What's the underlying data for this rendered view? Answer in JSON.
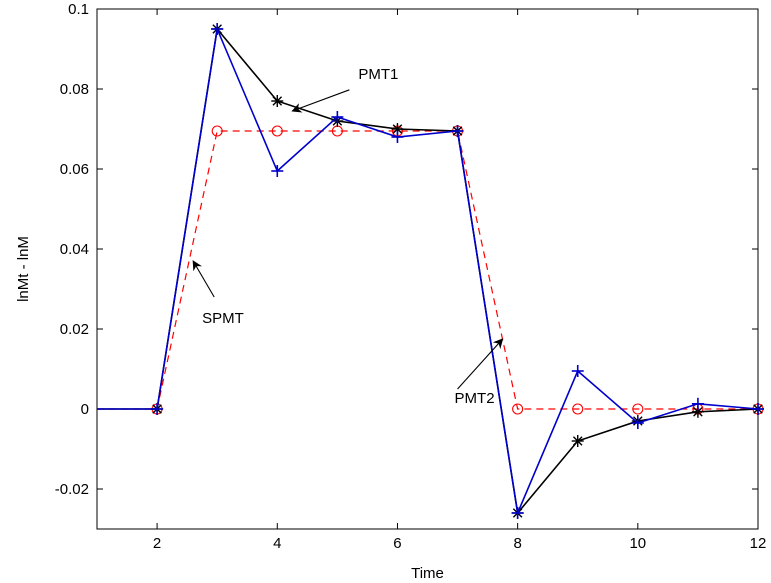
{
  "chart_data": {
    "type": "line",
    "xlabel": "Time",
    "ylabel": "lnMt - lnM",
    "xlim": [
      1,
      12
    ],
    "ylim": [
      -0.03,
      0.1
    ],
    "xticks": [
      2,
      4,
      6,
      8,
      10,
      12
    ],
    "xtick_labels": [
      "2",
      "4",
      "6",
      "8",
      "10",
      "12"
    ],
    "yticks": [
      -0.02,
      0,
      0.02,
      0.04,
      0.06,
      0.08,
      0.1
    ],
    "ytick_labels": [
      "-0.02",
      "0",
      "0.02",
      "0.04",
      "0.06",
      "0.08",
      "0.1"
    ],
    "grid": false,
    "x": [
      1,
      2,
      3,
      4,
      5,
      6,
      7,
      8,
      9,
      10,
      11,
      12
    ],
    "series": [
      {
        "color": "#000000",
        "line_style": "solid",
        "marker": "asterisk",
        "values": [
          0,
          0,
          0.095,
          0.077,
          0.072,
          0.07,
          0.0695,
          -0.026,
          -0.008,
          -0.003,
          -0.0007,
          0
        ]
      },
      {
        "color": "#0000cc",
        "line_style": "solid",
        "marker": "plus",
        "values": [
          0,
          0,
          0.095,
          0.0595,
          0.073,
          0.068,
          0.0695,
          -0.026,
          0.0095,
          -0.0035,
          0.0013,
          0
        ]
      },
      {
        "color": "#ff0000",
        "line_style": "dashed",
        "marker": "circle",
        "values": [
          0,
          0,
          0.0695,
          0.0695,
          0.0695,
          0.0695,
          0.0695,
          0,
          0,
          0,
          0,
          0
        ]
      }
    ],
    "annotations": [
      {
        "text": "PMT1",
        "text_x": 5.35,
        "text_y": 0.0825,
        "arrow_from": [
          5.2,
          0.0798
        ],
        "arrow_to": [
          4.25,
          0.0745
        ]
      },
      {
        "text": "SPMT",
        "text_x": 2.75,
        "text_y": 0.0215,
        "arrow_from": [
          2.95,
          0.028
        ],
        "arrow_to": [
          2.6,
          0.037
        ]
      },
      {
        "text": "PMT2",
        "text_x": 6.95,
        "text_y": 0.0015,
        "arrow_from": [
          7.0,
          0.005
        ],
        "arrow_to": [
          7.75,
          0.0175
        ]
      }
    ]
  }
}
